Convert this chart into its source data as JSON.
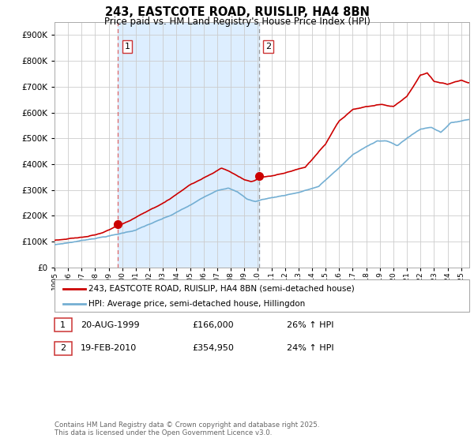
{
  "title": "243, EASTCOTE ROAD, RUISLIP, HA4 8BN",
  "subtitle": "Price paid vs. HM Land Registry's House Price Index (HPI)",
  "legend_line1": "243, EASTCOTE ROAD, RUISLIP, HA4 8BN (semi-detached house)",
  "legend_line2": "HPI: Average price, semi-detached house, Hillingdon",
  "purchase1_date": "20-AUG-1999",
  "purchase1_price": "£166,000",
  "purchase1_hpi": "26% ↑ HPI",
  "purchase1_label": "1",
  "purchase2_date": "19-FEB-2010",
  "purchase2_price": "£354,950",
  "purchase2_hpi": "24% ↑ HPI",
  "purchase2_label": "2",
  "footer": "Contains HM Land Registry data © Crown copyright and database right 2025.\nThis data is licensed under the Open Government Licence v3.0.",
  "red_color": "#cc0000",
  "blue_color": "#74afd3",
  "bg_shade_color": "#ddeeff",
  "grid_color": "#cccccc",
  "ylim_max": 950000,
  "ylim_min": 0,
  "purchase1_year": 1999.63,
  "purchase2_year": 2010.12,
  "purchase1_price_val": 166000,
  "purchase2_price_val": 354950
}
